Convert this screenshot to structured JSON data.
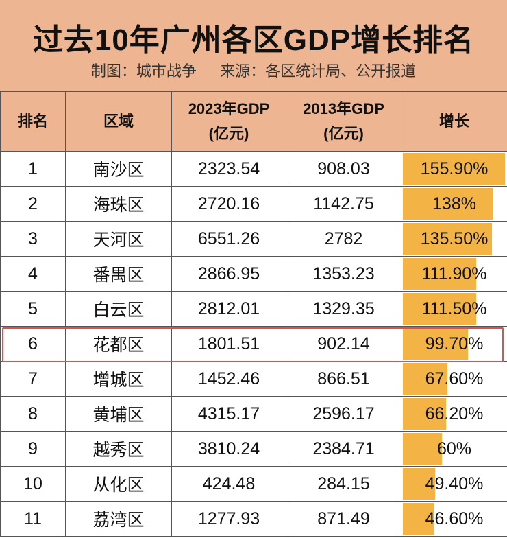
{
  "title": "过去10年广州各区GDP增长排名",
  "credit": "制图：城市战争",
  "source": "来源：各区统计局、公开报道",
  "headers": {
    "rank": "排名",
    "district": "区域",
    "gdp2023": "2023年GDP",
    "gdp2013": "2013年GDP",
    "unit": "(亿元)",
    "growth": "增长"
  },
  "bar_color": "#F4B345",
  "highlight_color": "#d9534f",
  "highlight_rank": "6",
  "rows": [
    {
      "rank": "1",
      "district": "南沙区",
      "gdp2023": "2323.54",
      "gdp2013": "908.03",
      "growth": "155.90%",
      "growth_value": 155.9
    },
    {
      "rank": "2",
      "district": "海珠区",
      "gdp2023": "2720.16",
      "gdp2013": "1142.75",
      "growth": "138%",
      "growth_value": 138
    },
    {
      "rank": "3",
      "district": "天河区",
      "gdp2023": "6551.26",
      "gdp2013": "2782",
      "growth": "135.50%",
      "growth_value": 135.5
    },
    {
      "rank": "4",
      "district": "番禺区",
      "gdp2023": "2866.95",
      "gdp2013": "1353.23",
      "growth": "111.90%",
      "growth_value": 111.9
    },
    {
      "rank": "5",
      "district": "白云区",
      "gdp2023": "2812.01",
      "gdp2013": "1329.35",
      "growth": "111.50%",
      "growth_value": 111.5
    },
    {
      "rank": "6",
      "district": "花都区",
      "gdp2023": "1801.51",
      "gdp2013": "902.14",
      "growth": "99.70%",
      "growth_value": 99.7
    },
    {
      "rank": "7",
      "district": "增城区",
      "gdp2023": "1452.46",
      "gdp2013": "866.51",
      "growth": "67.60%",
      "growth_value": 67.6
    },
    {
      "rank": "8",
      "district": "黄埔区",
      "gdp2023": "4315.17",
      "gdp2013": "2596.17",
      "growth": "66.20%",
      "growth_value": 66.2
    },
    {
      "rank": "9",
      "district": "越秀区",
      "gdp2023": "3810.24",
      "gdp2013": "2384.71",
      "growth": "60%",
      "growth_value": 60
    },
    {
      "rank": "10",
      "district": "从化区",
      "gdp2023": "424.48",
      "gdp2013": "284.15",
      "growth": "49.40%",
      "growth_value": 49.4
    },
    {
      "rank": "11",
      "district": "荔湾区",
      "gdp2023": "1277.93",
      "gdp2013": "871.49",
      "growth": "46.60%",
      "growth_value": 46.6
    }
  ]
}
